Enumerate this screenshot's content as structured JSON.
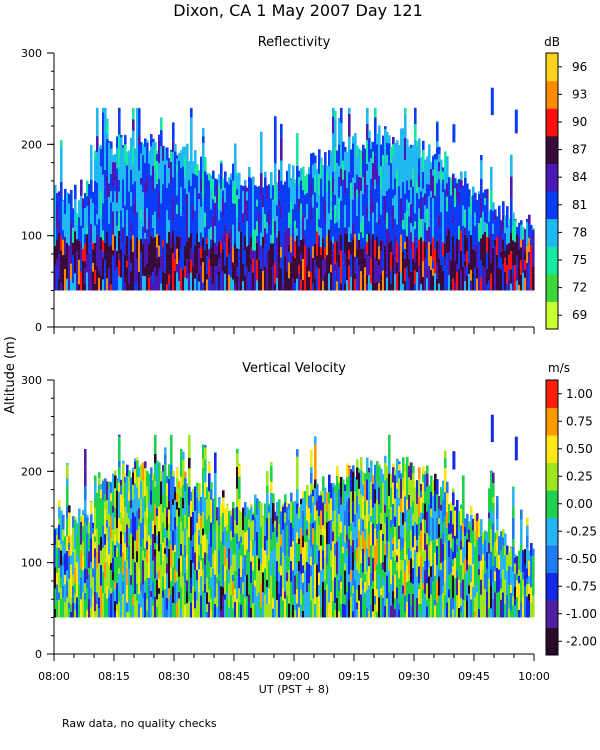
{
  "figure": {
    "title": "Dixon, CA   1 May 2007   Day 121",
    "ylabel": "Altitude (m)",
    "xlabel": "UT  (PST + 8)",
    "footnote": "Raw data, no quality checks"
  },
  "chart_data": [
    {
      "type": "heatmap",
      "title": "Reflectivity",
      "xlabel": "UT  (PST + 8)",
      "ylabel": "Altitude (m)",
      "xlim": [
        "08:00",
        "10:00"
      ],
      "xticks": [
        "08:00",
        "08:15",
        "08:30",
        "08:45",
        "09:00",
        "09:15",
        "09:30",
        "09:45",
        "10:00"
      ],
      "ylim": [
        0,
        300
      ],
      "yticks": [
        "0",
        "100",
        "200",
        "300"
      ],
      "data_altitude_range_m": [
        40,
        260
      ],
      "colorbar": {
        "units": "dB",
        "labels": [
          "69",
          "72",
          "75",
          "78",
          "81",
          "84",
          "87",
          "90",
          "93",
          "96"
        ],
        "colors": [
          "#c8ff30",
          "#3ed73e",
          "#19e6a0",
          "#20b8f0",
          "#0a3cf5",
          "#4a18b5",
          "#3a0a3a",
          "#ff1010",
          "#ff8c00",
          "#ffd21e"
        ]
      }
    },
    {
      "type": "heatmap",
      "title": "Vertical Velocity",
      "xlabel": "UT  (PST + 8)",
      "ylabel": "Altitude (m)",
      "xlim": [
        "08:00",
        "10:00"
      ],
      "xticks": [
        "08:00",
        "08:15",
        "08:30",
        "08:45",
        "09:00",
        "09:15",
        "09:30",
        "09:45",
        "10:00"
      ],
      "ylim": [
        0,
        300
      ],
      "yticks": [
        "0",
        "100",
        "200",
        "300"
      ],
      "data_altitude_range_m": [
        40,
        260
      ],
      "colorbar": {
        "units": "m/s",
        "labels": [
          "-2.00",
          "-1.00",
          "-0.75",
          "-0.50",
          "-0.25",
          "0.00",
          "0.25",
          "0.50",
          "0.75",
          "1.00"
        ],
        "colors": [
          "#2a0a2a",
          "#5020a0",
          "#1428e6",
          "#1e7cf0",
          "#28b4f0",
          "#1ed250",
          "#a0e61e",
          "#ffe614",
          "#ff9a00",
          "#ff1e0a"
        ]
      }
    }
  ]
}
